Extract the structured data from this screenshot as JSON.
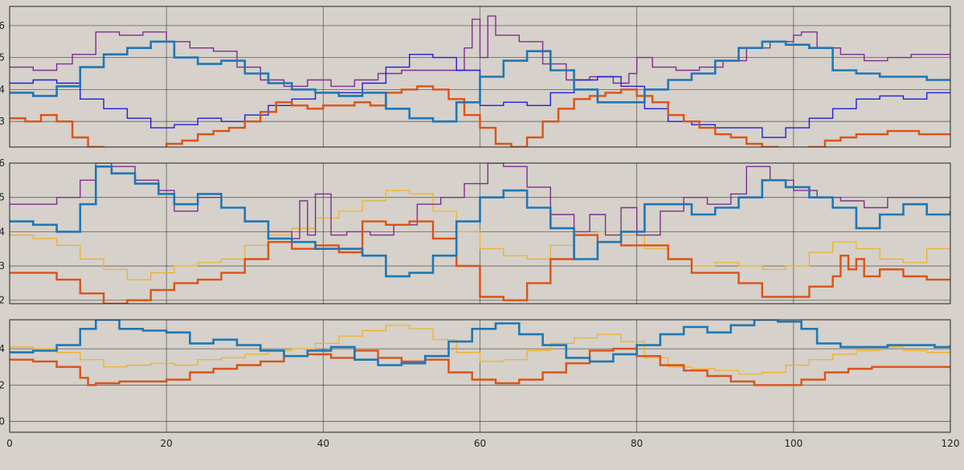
{
  "colors": {
    "background": "#d6d1ca",
    "blue_thick": "#1f77b4",
    "orange": "#d95319",
    "purple": "#7e2f8e",
    "navy": "#1f1fd6",
    "yellow": "#edb120"
  },
  "chart_data": [
    {
      "type": "line",
      "xlim": [
        0,
        120
      ],
      "ylim": [
        2.2,
        6.6
      ],
      "yticks": [
        3,
        4,
        5,
        6
      ],
      "xticks": [
        0,
        20,
        40,
        60,
        80,
        100,
        120
      ],
      "grid": true,
      "series": [
        {
          "color": "#7e2f8e",
          "width": 1.4,
          "x": [
            0,
            3,
            6,
            8,
            11,
            14,
            17,
            20,
            23,
            26,
            29,
            32,
            35,
            38,
            41,
            44,
            47,
            50,
            53,
            56,
            58,
            59,
            60,
            61,
            62,
            65,
            68,
            71,
            74,
            77,
            79,
            80,
            82,
            85,
            88,
            91,
            94,
            97,
            100,
            101,
            103,
            106,
            109,
            112,
            115,
            118,
            120
          ],
          "y": [
            4.7,
            4.6,
            4.8,
            5.1,
            5.8,
            5.7,
            5.8,
            5.5,
            5.3,
            5.2,
            4.7,
            4.3,
            4.1,
            4.3,
            4.1,
            4.3,
            4.5,
            4.6,
            4.6,
            4.6,
            5.3,
            6.2,
            5.0,
            6.3,
            5.7,
            5.5,
            4.8,
            4.3,
            4.4,
            4.2,
            4.5,
            5.0,
            4.7,
            4.6,
            4.7,
            4.9,
            5.3,
            5.5,
            5.7,
            5.8,
            5.3,
            5.1,
            4.9,
            5.0,
            5.1,
            5.1,
            5.0
          ]
        },
        {
          "color": "#1f1fd6",
          "width": 1.4,
          "x": [
            0,
            3,
            6,
            9,
            12,
            15,
            18,
            21,
            24,
            27,
            30,
            33,
            36,
            39,
            42,
            45,
            48,
            51,
            54,
            57,
            60,
            63,
            66,
            69,
            72,
            75,
            78,
            81,
            84,
            87,
            90,
            93,
            96,
            99,
            102,
            105,
            108,
            111,
            114,
            117,
            120
          ],
          "y": [
            4.2,
            4.3,
            4.2,
            3.7,
            3.4,
            3.1,
            2.8,
            2.9,
            3.1,
            3.0,
            3.2,
            3.5,
            3.7,
            3.9,
            3.9,
            4.2,
            4.7,
            5.1,
            5.0,
            4.6,
            3.5,
            3.6,
            3.5,
            3.9,
            4.3,
            4.4,
            4.1,
            3.4,
            3.0,
            2.9,
            2.8,
            2.8,
            2.5,
            2.8,
            3.1,
            3.4,
            3.7,
            3.8,
            3.7,
            3.9,
            3.9
          ]
        },
        {
          "color": "#d95319",
          "width": 2.4,
          "x": [
            0,
            2,
            4,
            6,
            8,
            10,
            12,
            14,
            16,
            18,
            20,
            22,
            24,
            26,
            28,
            30,
            32,
            34,
            36,
            38,
            40,
            42,
            44,
            46,
            48,
            50,
            52,
            54,
            56,
            58,
            60,
            62,
            64,
            66,
            68,
            70,
            72,
            74,
            76,
            78,
            80,
            82,
            84,
            86,
            88,
            90,
            92,
            94,
            96,
            98,
            100,
            102,
            104,
            106,
            108,
            110,
            112,
            114,
            116,
            118,
            120
          ],
          "y": [
            3.1,
            3.0,
            3.2,
            3.0,
            2.5,
            2.2,
            2.1,
            2.0,
            2.0,
            2.1,
            2.3,
            2.4,
            2.6,
            2.7,
            2.8,
            3.0,
            3.3,
            3.6,
            3.5,
            3.4,
            3.5,
            3.5,
            3.6,
            3.5,
            3.9,
            4.0,
            4.1,
            4.0,
            3.7,
            3.2,
            2.8,
            2.3,
            2.2,
            2.5,
            3.0,
            3.4,
            3.7,
            3.8,
            3.9,
            4.0,
            3.8,
            3.6,
            3.2,
            3.0,
            2.8,
            2.6,
            2.5,
            2.3,
            2.2,
            2.1,
            2.1,
            2.2,
            2.4,
            2.5,
            2.6,
            2.6,
            2.7,
            2.7,
            2.6,
            2.6,
            2.6
          ]
        },
        {
          "color": "#1f77b4",
          "width": 2.6,
          "x": [
            0,
            3,
            6,
            9,
            12,
            15,
            18,
            21,
            24,
            27,
            30,
            33,
            36,
            39,
            42,
            45,
            48,
            51,
            54,
            57,
            60,
            63,
            66,
            69,
            72,
            75,
            78,
            81,
            84,
            87,
            90,
            93,
            96,
            99,
            102,
            105,
            108,
            111,
            114,
            117,
            120
          ],
          "y": [
            3.9,
            3.8,
            4.1,
            4.7,
            5.1,
            5.3,
            5.5,
            5.0,
            4.8,
            4.9,
            4.5,
            4.2,
            4.0,
            3.9,
            3.8,
            3.9,
            3.4,
            3.1,
            3.0,
            3.6,
            4.4,
            4.9,
            5.2,
            4.6,
            4.0,
            3.6,
            3.6,
            4.0,
            4.3,
            4.5,
            4.9,
            5.3,
            5.5,
            5.4,
            5.3,
            4.6,
            4.5,
            4.4,
            4.4,
            4.3,
            4.3
          ]
        }
      ]
    },
    {
      "type": "line",
      "xlim": [
        0,
        120
      ],
      "ylim": [
        1.9,
        6.0
      ],
      "yticks": [
        2,
        3,
        4,
        5,
        6
      ],
      "xticks": [
        0,
        20,
        40,
        60,
        80,
        100,
        120
      ],
      "grid": true,
      "series": [
        {
          "color": "#edb120",
          "width": 1.2,
          "x": [
            0,
            3,
            6,
            9,
            12,
            15,
            18,
            21,
            24,
            27,
            30,
            33,
            36,
            39,
            42,
            45,
            48,
            51,
            54,
            57,
            60,
            63,
            66,
            69,
            72,
            75,
            78,
            81,
            84,
            87,
            90,
            93,
            96,
            99,
            102,
            105,
            108,
            111,
            114,
            117,
            120
          ],
          "y": [
            3.9,
            3.8,
            3.6,
            3.2,
            2.9,
            2.6,
            2.8,
            3.0,
            3.1,
            3.2,
            3.6,
            3.9,
            4.1,
            4.4,
            4.6,
            4.9,
            5.2,
            5.1,
            4.6,
            4.0,
            3.5,
            3.3,
            3.2,
            3.6,
            3.9,
            4.0,
            3.9,
            3.5,
            3.2,
            3.0,
            3.1,
            3.0,
            2.9,
            3.0,
            3.4,
            3.7,
            3.5,
            3.2,
            3.1,
            3.5,
            3.7
          ]
        },
        {
          "color": "#7e2f8e",
          "width": 1.4,
          "x": [
            0,
            3,
            6,
            9,
            11,
            13,
            16,
            19,
            21,
            24,
            27,
            30,
            33,
            36,
            37,
            38,
            39,
            41,
            43,
            46,
            49,
            52,
            55,
            58,
            61,
            63,
            66,
            69,
            72,
            74,
            76,
            78,
            80,
            83,
            86,
            89,
            92,
            94,
            97,
            100,
            103,
            106,
            109,
            112,
            115,
            118,
            120
          ],
          "y": [
            4.8,
            4.8,
            5.0,
            5.5,
            6.0,
            5.9,
            5.5,
            5.2,
            4.6,
            5.0,
            4.7,
            4.3,
            4.0,
            3.8,
            4.9,
            3.9,
            5.1,
            3.9,
            4.0,
            3.9,
            4.2,
            4.8,
            5.0,
            5.4,
            6.0,
            5.9,
            5.3,
            4.5,
            4.0,
            4.5,
            3.9,
            4.7,
            3.9,
            4.6,
            5.0,
            4.8,
            5.1,
            5.9,
            5.5,
            5.2,
            5.0,
            4.9,
            4.7,
            5.0,
            5.0,
            5.0,
            5.0
          ]
        },
        {
          "color": "#d95319",
          "width": 2.4,
          "x": [
            0,
            3,
            6,
            9,
            12,
            15,
            18,
            21,
            24,
            27,
            30,
            33,
            36,
            39,
            42,
            45,
            48,
            51,
            54,
            57,
            60,
            63,
            66,
            69,
            72,
            75,
            78,
            81,
            84,
            87,
            90,
            93,
            96,
            99,
            102,
            105,
            106,
            107,
            108,
            109,
            111,
            114,
            117,
            120
          ],
          "y": [
            2.8,
            2.8,
            2.6,
            2.2,
            1.9,
            2.0,
            2.3,
            2.5,
            2.6,
            2.8,
            3.2,
            3.7,
            3.5,
            3.6,
            3.4,
            4.3,
            4.2,
            4.3,
            3.8,
            3.0,
            2.1,
            2.0,
            2.5,
            3.2,
            3.9,
            3.7,
            3.6,
            3.6,
            3.2,
            2.8,
            2.8,
            2.5,
            2.1,
            2.1,
            2.4,
            2.7,
            3.3,
            2.9,
            3.2,
            2.7,
            2.9,
            2.7,
            2.6,
            2.6
          ]
        },
        {
          "color": "#1f77b4",
          "width": 2.6,
          "x": [
            0,
            3,
            6,
            9,
            11,
            13,
            16,
            19,
            21,
            24,
            27,
            30,
            33,
            36,
            39,
            42,
            45,
            48,
            51,
            54,
            57,
            60,
            63,
            66,
            69,
            72,
            75,
            78,
            81,
            84,
            87,
            90,
            93,
            96,
            99,
            102,
            105,
            108,
            111,
            114,
            117,
            120
          ],
          "y": [
            4.3,
            4.2,
            4.0,
            4.8,
            5.9,
            5.7,
            5.4,
            5.1,
            4.8,
            5.1,
            4.7,
            4.3,
            3.8,
            3.7,
            3.5,
            3.5,
            3.3,
            2.7,
            2.8,
            3.3,
            4.3,
            5.0,
            5.2,
            4.7,
            4.1,
            3.2,
            3.7,
            4.0,
            4.8,
            4.8,
            4.5,
            4.7,
            5.0,
            5.5,
            5.3,
            5.0,
            4.7,
            4.1,
            4.5,
            4.8,
            4.5,
            4.6
          ]
        }
      ]
    },
    {
      "type": "line",
      "xlim": [
        0,
        120
      ],
      "ylim": [
        -0.6,
        5.6
      ],
      "yticks": [
        0,
        2,
        4
      ],
      "xticks": [
        0,
        20,
        40,
        60,
        80,
        100,
        120
      ],
      "xtick_labels": [
        "0",
        "20",
        "40",
        "60",
        "80",
        "100",
        "120"
      ],
      "grid": true,
      "series": [
        {
          "color": "#edb120",
          "width": 1.2,
          "x": [
            0,
            3,
            6,
            9,
            12,
            15,
            18,
            21,
            24,
            27,
            30,
            33,
            36,
            39,
            42,
            45,
            48,
            51,
            54,
            57,
            60,
            63,
            66,
            69,
            72,
            75,
            78,
            81,
            84,
            87,
            90,
            93,
            96,
            99,
            102,
            105,
            108,
            111,
            114,
            117,
            120
          ],
          "y": [
            4.1,
            4.0,
            3.8,
            3.4,
            3.0,
            3.1,
            3.2,
            3.1,
            3.4,
            3.5,
            3.7,
            3.9,
            4.0,
            4.3,
            4.7,
            5.0,
            5.3,
            5.1,
            4.5,
            3.8,
            3.3,
            3.4,
            3.9,
            4.3,
            4.6,
            4.8,
            4.4,
            3.5,
            3.0,
            2.9,
            2.8,
            2.6,
            2.7,
            3.1,
            3.4,
            3.7,
            3.9,
            4.1,
            3.9,
            3.8,
            3.8
          ]
        },
        {
          "color": "#d95319",
          "width": 2.4,
          "x": [
            0,
            3,
            6,
            9,
            10,
            11,
            14,
            17,
            20,
            23,
            26,
            29,
            32,
            35,
            38,
            41,
            44,
            47,
            50,
            53,
            56,
            59,
            62,
            65,
            68,
            71,
            74,
            77,
            80,
            83,
            86,
            89,
            92,
            95,
            98,
            101,
            104,
            107,
            110,
            113,
            116,
            120
          ],
          "y": [
            3.4,
            3.3,
            3.0,
            2.4,
            2.0,
            2.1,
            2.2,
            2.2,
            2.3,
            2.7,
            2.9,
            3.1,
            3.3,
            3.6,
            3.7,
            3.5,
            3.9,
            3.5,
            3.3,
            3.4,
            2.7,
            2.3,
            2.1,
            2.3,
            2.7,
            3.2,
            3.9,
            4.0,
            3.6,
            3.1,
            2.8,
            2.5,
            2.2,
            2.0,
            2.0,
            2.3,
            2.7,
            2.9,
            3.0,
            3.0,
            3.0,
            2.9
          ]
        },
        {
          "color": "#1f77b4",
          "width": 2.6,
          "x": [
            0,
            3,
            6,
            9,
            11,
            14,
            17,
            20,
            23,
            26,
            29,
            32,
            35,
            38,
            41,
            44,
            47,
            50,
            53,
            56,
            59,
            62,
            65,
            68,
            71,
            74,
            77,
            80,
            83,
            86,
            89,
            92,
            95,
            98,
            101,
            103,
            106,
            109,
            112,
            115,
            118,
            120
          ],
          "y": [
            3.8,
            3.9,
            4.2,
            5.1,
            5.6,
            5.1,
            5.0,
            4.9,
            4.3,
            4.5,
            4.2,
            3.9,
            3.6,
            3.9,
            4.1,
            3.4,
            3.1,
            3.2,
            3.6,
            4.4,
            5.1,
            5.4,
            4.8,
            4.2,
            3.5,
            3.3,
            3.7,
            4.2,
            4.8,
            5.2,
            4.9,
            5.3,
            5.6,
            5.5,
            5.1,
            4.3,
            4.1,
            4.1,
            4.2,
            4.2,
            4.1,
            4.2
          ]
        }
      ]
    }
  ]
}
